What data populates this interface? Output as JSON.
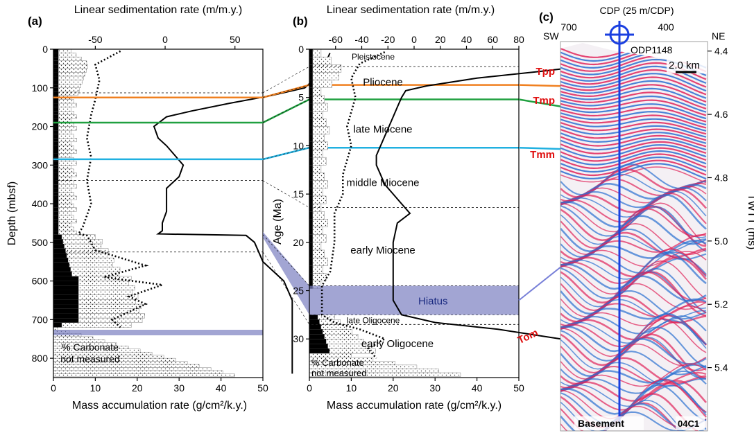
{
  "chart_data": [
    {
      "type": "line",
      "panel_label": "(a)",
      "xlabel": "Mass accumulation rate (g/cm²/k.y.)",
      "x2label": "Linear sedimentation rate (m/m.y.)",
      "ylabel": "Depth (mbsf)",
      "x_ticks": [
        "0",
        "10",
        "20",
        "30",
        "40",
        "50"
      ],
      "x2_ticks": [
        "-50",
        "0",
        "50"
      ],
      "y_ticks": [
        "0",
        "100",
        "200",
        "300",
        "400",
        "500",
        "600",
        "700",
        "800"
      ],
      "xlim": [
        0,
        50
      ],
      "x2lim": [
        -80,
        70
      ],
      "ylim": [
        0,
        850
      ],
      "note": "% Carbonate not measured",
      "boundaries": [
        113,
        340,
        525
      ],
      "horizons": [
        {
          "name": "Tpp",
          "depth": 125,
          "color": "#f08020"
        },
        {
          "name": "Tmp",
          "depth": 190,
          "color": "#20a040"
        },
        {
          "name": "Tmm",
          "depth": 285,
          "color": "#20b0e0"
        },
        {
          "name": "Tom",
          "depth": 480,
          "color": "#8088c8"
        }
      ],
      "series": [
        {
          "role": "Mass accumulation rate (solid)",
          "points": [
            [
              66,
              10
            ],
            [
              64,
              60
            ],
            [
              60,
              100
            ],
            [
              52,
              120
            ],
            [
              42,
              140
            ],
            [
              33,
              160
            ],
            [
              27,
              175
            ],
            [
              24,
              200
            ],
            [
              25,
              230
            ],
            [
              27,
              250
            ],
            [
              29,
              275
            ],
            [
              31,
              300
            ],
            [
              30,
              330
            ],
            [
              27,
              360
            ],
            [
              27,
              390
            ],
            [
              27,
              420
            ],
            [
              26,
              450
            ],
            [
              26,
              470
            ],
            [
              25,
              478
            ],
            [
              46,
              482
            ],
            [
              48,
              500
            ],
            [
              50,
              550
            ],
            [
              55,
              600
            ],
            [
              57,
              650
            ],
            [
              57,
              700
            ],
            [
              57,
              800
            ],
            [
              57,
              840
            ]
          ]
        },
        {
          "role": "Linear sedimentation rate (dotted)",
          "points": [
            [
              16,
              5
            ],
            [
              10,
              40
            ],
            [
              11,
              80
            ],
            [
              10,
              130
            ],
            [
              9,
              170
            ],
            [
              8,
              230
            ],
            [
              9,
              280
            ],
            [
              8,
              340
            ],
            [
              9,
              400
            ],
            [
              7,
              460
            ],
            [
              6,
              478
            ],
            [
              8,
              482
            ],
            [
              10,
              520
            ],
            [
              22,
              560
            ],
            [
              12,
              590
            ],
            [
              26,
              610
            ],
            [
              18,
              640
            ],
            [
              22,
              660
            ],
            [
              14,
              700
            ],
            [
              16,
              720
            ]
          ]
        }
      ]
    },
    {
      "type": "line",
      "panel_label": "(b)",
      "xlabel": "Mass accumulation rate (g/cm²/k.y.)",
      "x2label": "Linear sedimentation rate (m/m.y.)",
      "ylabel": "Age (Ma)",
      "x_ticks": [
        "0",
        "10",
        "20",
        "30",
        "40",
        "50"
      ],
      "x2_ticks": [
        "-60",
        "-40",
        "-20",
        "0",
        "20",
        "40",
        "60",
        "80"
      ],
      "y_ticks": [
        "0",
        "5",
        "10",
        "15",
        "20",
        "25",
        "30"
      ],
      "xlim": [
        0,
        50
      ],
      "x2lim": [
        -80,
        80
      ],
      "ylim": [
        0,
        34
      ],
      "note": "% Carbonate not measured",
      "epochs": [
        {
          "name": "Pleistocene",
          "age": 0.7
        },
        {
          "name": "Pliocene",
          "age": 3.4
        },
        {
          "name": "late  Miocene",
          "age": 8.3
        },
        {
          "name": "middle  Miocene",
          "age": 13.8
        },
        {
          "name": "early  Miocene",
          "age": 20.8
        },
        {
          "name": "late  Oligocene",
          "age": 28.0
        },
        {
          "name": "early Oligocene",
          "age": 30.5
        }
      ],
      "hiatus": {
        "label": "Hiatus",
        "range": [
          24.5,
          27.5
        ]
      },
      "boundaries": [
        1.8,
        16.4,
        28.5
      ],
      "series": [
        {
          "role": "Mass accumulation rate (solid)",
          "points": [
            [
              72,
              0.3
            ],
            [
              70,
              1.2
            ],
            [
              65,
              1.8
            ],
            [
              55,
              2.3
            ],
            [
              40,
              3.0
            ],
            [
              28,
              3.8
            ],
            [
              23,
              4.3
            ],
            [
              22,
              5
            ],
            [
              21,
              6
            ],
            [
              20,
              7
            ],
            [
              19,
              8
            ],
            [
              18,
              9
            ],
            [
              17,
              10
            ],
            [
              16,
              11
            ],
            [
              16,
              12
            ],
            [
              17,
              13
            ],
            [
              18,
              14
            ],
            [
              20,
              15
            ],
            [
              22,
              16
            ],
            [
              24,
              17
            ],
            [
              21,
              18
            ],
            [
              20,
              20
            ],
            [
              20,
              22
            ],
            [
              20,
              24
            ],
            [
              20,
              26
            ],
            [
              22,
              27.5
            ],
            [
              30,
              28.3
            ],
            [
              45,
              29
            ],
            [
              60,
              30
            ],
            [
              70,
              31
            ],
            [
              73,
              32
            ],
            [
              73,
              33.5
            ]
          ]
        },
        {
          "role": "Linear sedimentation rate (dotted)",
          "points": [
            [
              18,
              0.3
            ],
            [
              12,
              1.5
            ],
            [
              10,
              3
            ],
            [
              11,
              5
            ],
            [
              9,
              8
            ],
            [
              10,
              10
            ],
            [
              8,
              13
            ],
            [
              8,
              15
            ],
            [
              6,
              17
            ],
            [
              6,
              20
            ],
            [
              5,
              23
            ],
            [
              3,
              24.5
            ],
            [
              3,
              27.5
            ],
            [
              6,
              28.3
            ],
            [
              12,
              29
            ],
            [
              18,
              30
            ],
            [
              14,
              31
            ],
            [
              16,
              32
            ]
          ]
        }
      ]
    },
    {
      "type": "heatmap",
      "panel_label": "(c)",
      "title": "CDP (25 m/CDP)",
      "x2_ticks": [
        "700",
        "400"
      ],
      "directions": [
        "SW",
        "NE"
      ],
      "well": "ODP1148",
      "scale_bar": "2.0 km",
      "ylabel": "TWTT (ms)",
      "y_ticks": [
        "4.4",
        "4.6",
        "4.8",
        "5.0",
        "5.2",
        "5.4"
      ],
      "ylim": [
        4.37,
        5.6
      ],
      "horizons": [
        {
          "name": "Tpp",
          "twtt": 4.515
        },
        {
          "name": "Tmp",
          "twtt": 4.605
        },
        {
          "name": "Tmm",
          "twtt": 4.715
        },
        {
          "name": "Tom",
          "twtt": 4.94
        }
      ],
      "basement_label": "Basement",
      "line_id": "04C1"
    }
  ],
  "colors": {
    "orange": "#f08020",
    "green": "#20a040",
    "cyan": "#20b0e0",
    "tom": "#7880d8",
    "hiatus": "#7b7fc0",
    "well": "#1a3fe0",
    "seis_red": "#e0245a",
    "seis_blue": "#2a6fd0"
  }
}
